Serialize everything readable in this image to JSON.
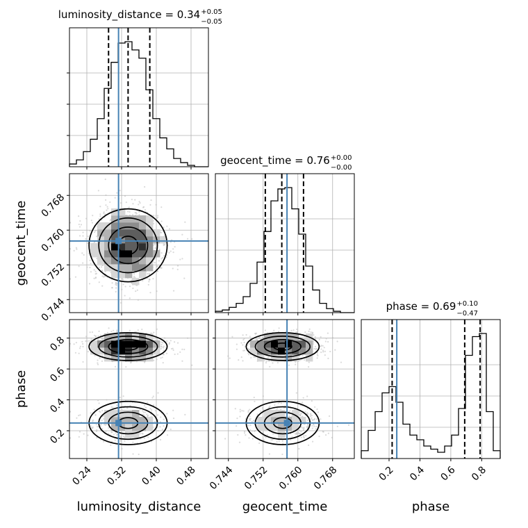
{
  "chart_data": {
    "type": "corner",
    "parameters": [
      "luminosity_distance",
      "geocent_time",
      "phase"
    ],
    "titles": [
      {
        "parameter": "luminosity_distance",
        "prefix": "luminosity_distance = 0.34",
        "upper": "+0.05",
        "lower": "−0.05"
      },
      {
        "parameter": "geocent_time",
        "prefix": "geocent_time = 0.76",
        "upper": "+0.00",
        "lower": "−0.00"
      },
      {
        "parameter": "phase",
        "prefix": "phase = 0.69",
        "upper": "+0.10",
        "lower": "−0.47"
      }
    ],
    "truths": {
      "luminosity_distance": 0.313,
      "geocent_time": 0.7575,
      "phase": 0.25
    },
    "truth_color": "#4682b4",
    "quantiles": {
      "luminosity_distance": [
        0.29,
        0.335,
        0.385
      ],
      "geocent_time": [
        0.7525,
        0.7563,
        0.7613
      ],
      "phase": [
        0.22,
        0.69,
        0.79
      ]
    },
    "ranges": {
      "luminosity_distance": [
        0.2,
        0.52
      ],
      "geocent_time": [
        0.741,
        0.773
      ],
      "phase": [
        0.02,
        0.92
      ]
    },
    "ticks": {
      "luminosity_distance": [
        "0.24",
        "0.32",
        "0.40",
        "0.48"
      ],
      "geocent_time": [
        "0.744",
        "0.752",
        "0.760",
        "0.768"
      ],
      "phase": [
        "0.2",
        "0.4",
        "0.6",
        "0.8"
      ]
    },
    "histograms": {
      "luminosity_distance": {
        "bin_edges": [
          0.2,
          0.216,
          0.232,
          0.248,
          0.264,
          0.28,
          0.296,
          0.312,
          0.328,
          0.344,
          0.36,
          0.376,
          0.392,
          0.408,
          0.424,
          0.44,
          0.456,
          0.472,
          0.488,
          0.504,
          0.52
        ],
        "counts": [
          2,
          5,
          11,
          20,
          35,
          57,
          76,
          90,
          91,
          85,
          79,
          56,
          35,
          21,
          13,
          6,
          3,
          1,
          0,
          0
        ]
      },
      "geocent_time": {
        "bin_edges": [
          0.741,
          0.7426,
          0.7442,
          0.7458,
          0.7474,
          0.749,
          0.7506,
          0.7522,
          0.7538,
          0.7554,
          0.757,
          0.7586,
          0.7602,
          0.7618,
          0.7634,
          0.765,
          0.7666,
          0.7682,
          0.7698,
          0.7714,
          0.773
        ],
        "counts": [
          1,
          2,
          4,
          7,
          12,
          22,
          38,
          61,
          84,
          93,
          94,
          78,
          59,
          35,
          17,
          7,
          3,
          1,
          0,
          0
        ]
      },
      "phase": {
        "bin_edges": [
          0.02,
          0.065,
          0.11,
          0.155,
          0.2,
          0.245,
          0.29,
          0.335,
          0.38,
          0.425,
          0.47,
          0.515,
          0.56,
          0.605,
          0.65,
          0.695,
          0.74,
          0.785,
          0.83,
          0.875,
          0.92
        ],
        "counts": [
          5,
          18,
          30,
          42,
          46,
          36,
          22,
          15,
          12,
          8,
          6,
          4,
          8,
          15,
          32,
          66,
          78,
          80,
          30,
          5
        ]
      }
    },
    "tick_labels": {
      "y_hist": []
    },
    "grid": true,
    "legend": "none"
  }
}
